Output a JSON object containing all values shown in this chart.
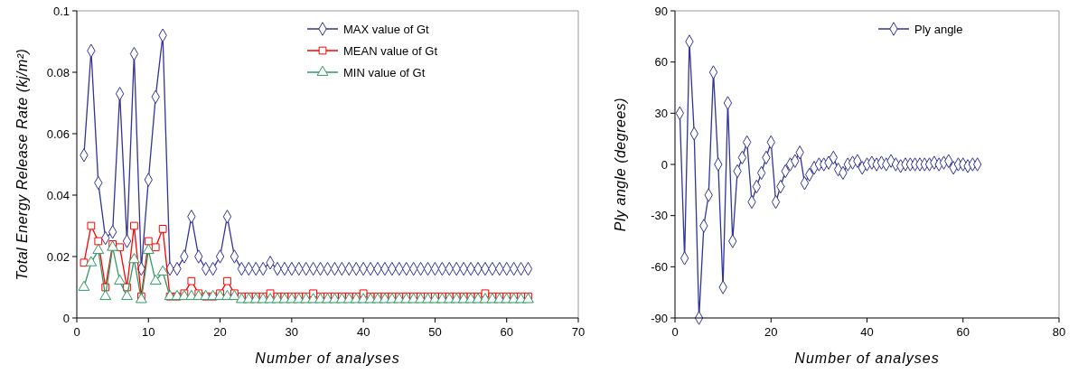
{
  "chart_data": [
    {
      "type": "line",
      "xlabel": "Number of analyses",
      "ylabel": "Total Energy Release Rate (kj/m²)",
      "x": [
        1,
        2,
        3,
        4,
        5,
        6,
        7,
        8,
        9,
        10,
        11,
        12,
        13,
        14,
        15,
        16,
        17,
        18,
        19,
        20,
        21,
        22,
        23,
        24,
        25,
        26,
        27,
        28,
        29,
        30,
        31,
        32,
        33,
        34,
        35,
        36,
        37,
        38,
        39,
        40,
        41,
        42,
        43,
        44,
        45,
        46,
        47,
        48,
        49,
        50,
        51,
        52,
        53,
        54,
        55,
        56,
        57,
        58,
        59,
        60,
        61,
        62,
        63
      ],
      "series": [
        {
          "name": "MAX value of Gt",
          "color": "#333399",
          "marker": "diamond",
          "values": [
            0.053,
            0.087,
            0.044,
            0.026,
            0.028,
            0.073,
            0.025,
            0.086,
            0.016,
            0.045,
            0.072,
            0.092,
            0.016,
            0.016,
            0.02,
            0.033,
            0.02,
            0.016,
            0.016,
            0.02,
            0.033,
            0.02,
            0.016,
            0.016,
            0.016,
            0.016,
            0.018,
            0.016,
            0.016,
            0.016,
            0.016,
            0.016,
            0.016,
            0.016,
            0.016,
            0.016,
            0.016,
            0.016,
            0.016,
            0.016,
            0.016,
            0.016,
            0.016,
            0.016,
            0.016,
            0.016,
            0.016,
            0.016,
            0.016,
            0.016,
            0.016,
            0.016,
            0.016,
            0.016,
            0.016,
            0.016,
            0.016,
            0.016,
            0.016,
            0.016,
            0.016,
            0.016,
            0.016
          ]
        },
        {
          "name": "MEAN value of Gt",
          "color": "#ff0000",
          "marker": "square",
          "values": [
            0.018,
            0.03,
            0.025,
            0.01,
            0.024,
            0.023,
            0.01,
            0.03,
            0.007,
            0.025,
            0.023,
            0.029,
            0.007,
            0.007,
            0.008,
            0.012,
            0.008,
            0.007,
            0.007,
            0.008,
            0.012,
            0.008,
            0.007,
            0.007,
            0.007,
            0.007,
            0.008,
            0.007,
            0.007,
            0.007,
            0.007,
            0.007,
            0.008,
            0.007,
            0.007,
            0.007,
            0.007,
            0.007,
            0.007,
            0.008,
            0.007,
            0.007,
            0.007,
            0.007,
            0.007,
            0.007,
            0.007,
            0.007,
            0.007,
            0.007,
            0.007,
            0.007,
            0.007,
            0.007,
            0.007,
            0.007,
            0.008,
            0.007,
            0.007,
            0.007,
            0.007,
            0.007,
            0.007
          ]
        },
        {
          "name": "MIN value of Gt",
          "color": "#339966",
          "marker": "triangle",
          "values": [
            0.01,
            0.018,
            0.022,
            0.007,
            0.023,
            0.012,
            0.007,
            0.019,
            0.006,
            0.022,
            0.012,
            0.015,
            0.007,
            0.007,
            0.007,
            0.007,
            0.007,
            0.007,
            0.007,
            0.007,
            0.007,
            0.007,
            0.006,
            0.006,
            0.006,
            0.006,
            0.006,
            0.006,
            0.006,
            0.006,
            0.006,
            0.006,
            0.006,
            0.006,
            0.006,
            0.006,
            0.006,
            0.006,
            0.006,
            0.006,
            0.006,
            0.006,
            0.006,
            0.006,
            0.006,
            0.006,
            0.006,
            0.006,
            0.006,
            0.006,
            0.006,
            0.006,
            0.006,
            0.006,
            0.006,
            0.006,
            0.006,
            0.006,
            0.006,
            0.006,
            0.006,
            0.006,
            0.006
          ]
        }
      ],
      "xlim": [
        0,
        70
      ],
      "xticks": [
        0,
        10,
        20,
        30,
        40,
        50,
        60,
        70
      ],
      "ylim": [
        0,
        0.1
      ],
      "yticks": [
        0,
        0.02,
        0.04,
        0.06,
        0.08,
        0.1
      ],
      "legend": "top right"
    },
    {
      "type": "line",
      "xlabel": "Number of analyses",
      "ylabel": "Ply angle (degrees)",
      "x": [
        1,
        2,
        3,
        4,
        5,
        6,
        7,
        8,
        9,
        10,
        11,
        12,
        13,
        14,
        15,
        16,
        17,
        18,
        19,
        20,
        21,
        22,
        23,
        24,
        25,
        26,
        27,
        28,
        29,
        30,
        31,
        32,
        33,
        34,
        35,
        36,
        37,
        38,
        39,
        40,
        41,
        42,
        43,
        44,
        45,
        46,
        47,
        48,
        49,
        50,
        51,
        52,
        53,
        54,
        55,
        56,
        57,
        58,
        59,
        60,
        61,
        62,
        63
      ],
      "series": [
        {
          "name": "Ply angle",
          "color": "#333399",
          "marker": "diamond",
          "values": [
            30,
            -55,
            72,
            18,
            -90,
            -36,
            -18,
            54,
            0,
            -72,
            36,
            -45,
            -4,
            4,
            13,
            -22,
            -13,
            -5,
            4,
            13,
            -22,
            -13,
            -4,
            0,
            2,
            7,
            -11,
            -6,
            -2,
            0,
            0,
            1,
            4,
            -3,
            -5,
            0,
            1,
            2,
            -2,
            0,
            1,
            0,
            1,
            0,
            2,
            0,
            -1,
            0,
            0,
            0,
            0,
            0,
            0,
            1,
            0,
            1,
            2,
            -2,
            0,
            0,
            -1,
            0,
            0
          ]
        }
      ],
      "xlim": [
        0,
        80
      ],
      "xticks": [
        0,
        20,
        40,
        60,
        80
      ],
      "ylim": [
        -90,
        90
      ],
      "yticks": [
        -90,
        -60,
        -30,
        0,
        30,
        60,
        90
      ],
      "legend": "top right"
    }
  ]
}
